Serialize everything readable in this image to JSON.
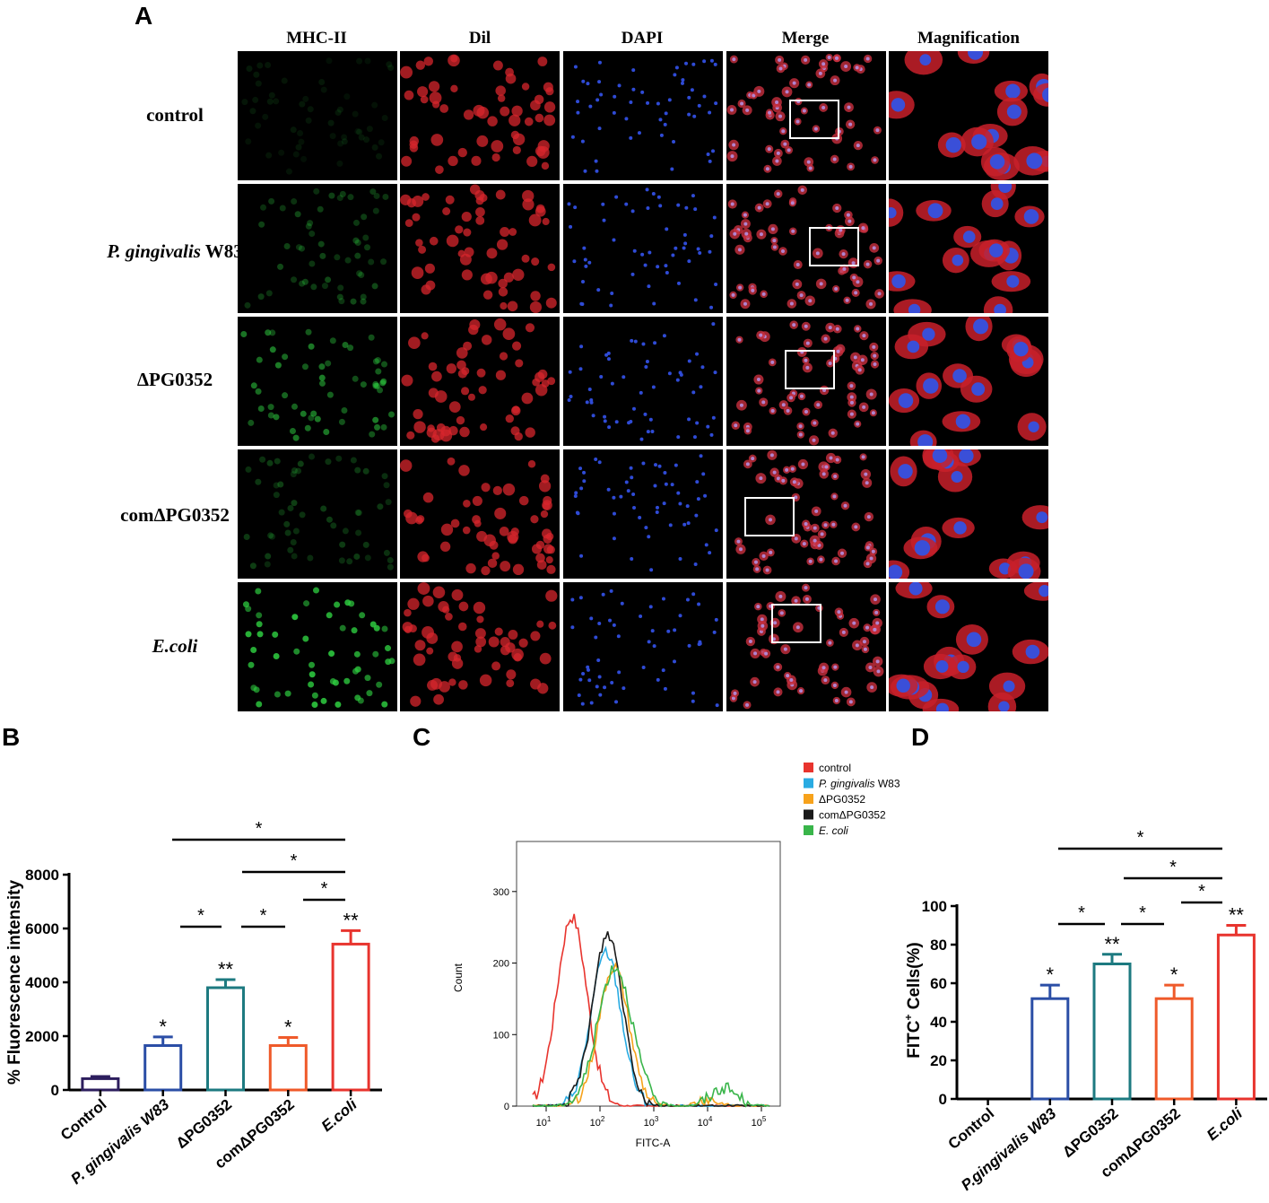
{
  "panel_letters": {
    "A": "A",
    "B": "B",
    "C": "C",
    "D": "D"
  },
  "panel_a": {
    "columns": [
      "MHC-II",
      "Dil",
      "DAPI",
      "Merge",
      "Magnification"
    ],
    "rows": [
      {
        "label": "control",
        "italic_part": "",
        "rest": "control"
      },
      {
        "label": "P. gingivalis W83",
        "italic_part": "P. gingivalis",
        "rest": " W83"
      },
      {
        "label": "ΔPG0352",
        "italic_part": "",
        "rest": "ΔPG0352"
      },
      {
        "label": "comΔPG0352",
        "italic_part": "",
        "rest": "comΔPG0352"
      },
      {
        "label": "E.coli",
        "italic_part": "E.coli",
        "rest": ""
      }
    ],
    "mhc_green_level": [
      0.12,
      0.35,
      0.6,
      0.3,
      0.9
    ]
  },
  "chart_data": [
    {
      "panel": "B",
      "type": "bar",
      "ylabel": "% Fluorescence intensity",
      "categories": [
        "Control",
        "P. gingivalis W83",
        "ΔPG0352",
        "comΔPG0352",
        "E.coli"
      ],
      "values": [
        420,
        1650,
        3800,
        1650,
        5420
      ],
      "errors": [
        80,
        320,
        300,
        300,
        500
      ],
      "colors": [
        "#2d1e5e",
        "#2b4ea6",
        "#1d7a80",
        "#ef5a2a",
        "#e8342e"
      ],
      "significance": [
        "",
        "*",
        "**",
        "*",
        "**"
      ],
      "ylim": [
        0,
        8000
      ],
      "yticks": [
        0,
        2000,
        4000,
        6000,
        8000
      ],
      "comparisons": [
        {
          "from": 1,
          "to": 4,
          "label": "*"
        },
        {
          "from": 3,
          "to": 4,
          "label": "*"
        },
        {
          "from": 3.5,
          "to": 4,
          "label": "*"
        },
        {
          "from": 1.4,
          "to": 1.9,
          "label": "*"
        },
        {
          "from": 2.4,
          "to": 2.9,
          "label": "*"
        }
      ]
    },
    {
      "panel": "C",
      "type": "line",
      "xlabel": "FITC-A",
      "ylabel": "Count",
      "x_scale": "log",
      "x_tick_labels": [
        "10^1",
        "10^2",
        "10^3",
        "10^4",
        "10^5"
      ],
      "yticks": [
        0,
        100,
        200,
        300
      ],
      "ylim": [
        0,
        370
      ],
      "legend": [
        {
          "name": "control",
          "color": "#e8342e",
          "italic": false
        },
        {
          "name": "P. gingivalis W83",
          "color": "#29abe2",
          "italic": true
        },
        {
          "name": "ΔPG0352",
          "color": "#f7a21b",
          "italic": false
        },
        {
          "name": "comΔPG0352",
          "color": "#1a1a1a",
          "italic": false
        },
        {
          "name": "E. coli",
          "color": "#39b54a",
          "italic": true
        }
      ],
      "series": [
        {
          "name": "control",
          "peak_x": 30,
          "peak_y": 265,
          "color": "#e8342e"
        },
        {
          "name": "P. gingivalis W83",
          "peak_x": 130,
          "peak_y": 215,
          "color": "#29abe2"
        },
        {
          "name": "ΔPG0352",
          "peak_x": 180,
          "peak_y": 195,
          "color": "#f7a21b"
        },
        {
          "name": "comΔPG0352",
          "peak_x": 140,
          "peak_y": 240,
          "color": "#1a1a1a"
        },
        {
          "name": "E. coli",
          "peak_x": 190,
          "peak_y": 195,
          "color": "#39b54a"
        }
      ]
    },
    {
      "panel": "D",
      "type": "bar",
      "ylabel": "FITC+ Cells(%)",
      "ylabel_main": "FITC",
      "ylabel_sup": "+",
      "ylabel_tail": " Cells(%)",
      "categories": [
        "Control",
        "P.gingivalis W83",
        "ΔPG0352",
        "comΔPG0352",
        "E.coli"
      ],
      "values": [
        0,
        52,
        70,
        52,
        85
      ],
      "errors": [
        0,
        7,
        5,
        7,
        5
      ],
      "colors": [
        "#2d1e5e",
        "#2b4ea6",
        "#1d7a80",
        "#ef5a2a",
        "#e8342e"
      ],
      "significance": [
        "",
        "*",
        "**",
        "*",
        "**"
      ],
      "ylim": [
        0,
        100
      ],
      "yticks": [
        0,
        20,
        40,
        60,
        80,
        100
      ],
      "comparisons": [
        {
          "from": 1,
          "to": 4,
          "label": "*"
        },
        {
          "from": 2,
          "to": 4,
          "label": "*"
        },
        {
          "from": 3,
          "to": 4,
          "label": "*"
        },
        {
          "from": 1,
          "to": 2,
          "label": "*"
        },
        {
          "from": 2,
          "to": 3,
          "label": "*"
        }
      ]
    }
  ]
}
